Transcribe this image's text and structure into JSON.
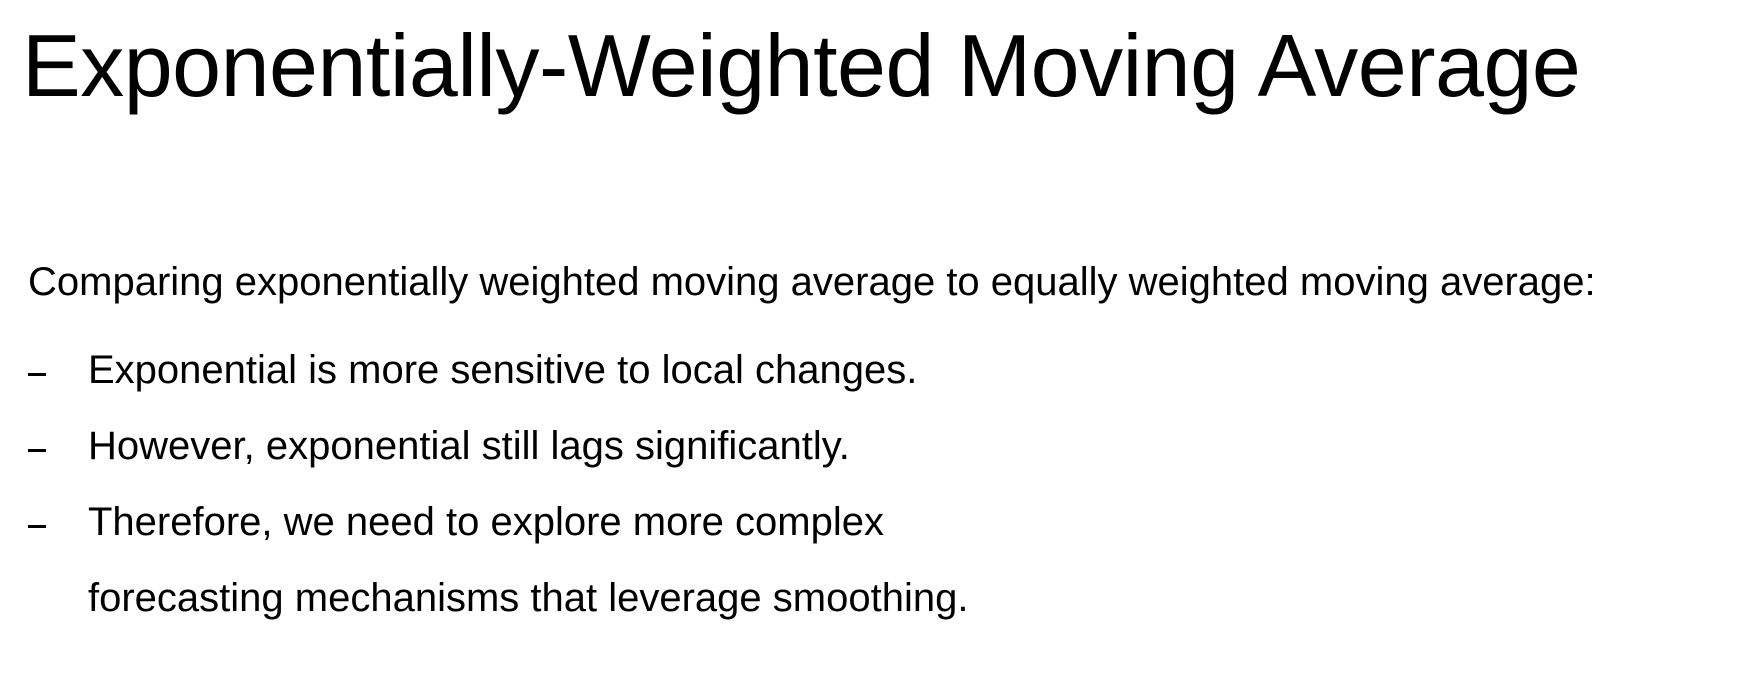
{
  "slide": {
    "title": "Exponentially-Weighted Moving Average",
    "intro": "Comparing exponentially weighted moving average to equally weighted moving average:",
    "bullets": [
      {
        "lines": [
          "Exponential is more sensitive to local changes."
        ]
      },
      {
        "lines": [
          "However, exponential still lags significantly."
        ]
      },
      {
        "lines": [
          "Therefore, we need to explore more complex",
          "forecasting mechanisms that leverage smoothing."
        ]
      }
    ]
  }
}
